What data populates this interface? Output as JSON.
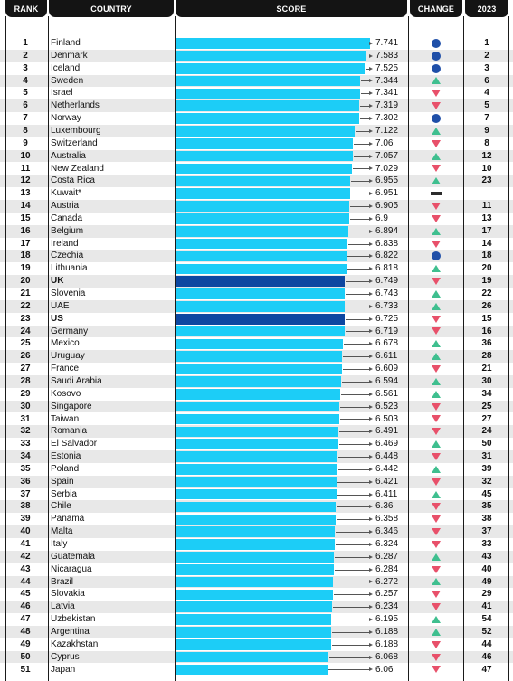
{
  "header": {
    "rank": "RANK",
    "country": "COUNTRY",
    "score": "SCORE",
    "change": "CHANGE",
    "prev_year": "2023"
  },
  "colors": {
    "bar": "#1ccdf7",
    "bar_highlight": "#0d47a1",
    "row_alt": "#e8e8e8",
    "up": "#3fbf8f",
    "down": "#e8506a",
    "same": "#1f4fa8",
    "new": "#2b2b2b"
  },
  "chart_data": {
    "type": "bar",
    "orientation": "horizontal",
    "value_range": [
      0,
      7.741
    ],
    "rows": [
      {
        "rank": "1",
        "country": "Finland",
        "score": 7.741,
        "score_label": "7.741",
        "change": "same",
        "prev": "1",
        "highlight": false
      },
      {
        "rank": "2",
        "country": "Denmark",
        "score": 7.583,
        "score_label": "7.583",
        "change": "same",
        "prev": "2",
        "highlight": false
      },
      {
        "rank": "3",
        "country": "Iceland",
        "score": 7.525,
        "score_label": "7.525",
        "change": "same",
        "prev": "3",
        "highlight": false
      },
      {
        "rank": "4",
        "country": "Sweden",
        "score": 7.344,
        "score_label": "7.344",
        "change": "up",
        "prev": "6",
        "highlight": false
      },
      {
        "rank": "5",
        "country": "Israel",
        "score": 7.341,
        "score_label": "7.341",
        "change": "down",
        "prev": "4",
        "highlight": false
      },
      {
        "rank": "6",
        "country": "Netherlands",
        "score": 7.319,
        "score_label": "7.319",
        "change": "down",
        "prev": "5",
        "highlight": false
      },
      {
        "rank": "7",
        "country": "Norway",
        "score": 7.302,
        "score_label": "7.302",
        "change": "same",
        "prev": "7",
        "highlight": false
      },
      {
        "rank": "8",
        "country": "Luxembourg",
        "score": 7.122,
        "score_label": "7.122",
        "change": "up",
        "prev": "9",
        "highlight": false
      },
      {
        "rank": "9",
        "country": "Switzerland",
        "score": 7.06,
        "score_label": "7.06",
        "change": "down",
        "prev": "8",
        "highlight": false
      },
      {
        "rank": "10",
        "country": "Australia",
        "score": 7.057,
        "score_label": "7.057",
        "change": "up",
        "prev": "12",
        "highlight": false
      },
      {
        "rank": "11",
        "country": "New Zealand",
        "score": 7.029,
        "score_label": "7.029",
        "change": "down",
        "prev": "10",
        "highlight": false
      },
      {
        "rank": "12",
        "country": "Costa Rica",
        "score": 6.955,
        "score_label": "6.955",
        "change": "up",
        "prev": "23",
        "highlight": false
      },
      {
        "rank": "13",
        "country": "Kuwait*",
        "score": 6.951,
        "score_label": "6.951",
        "change": "new",
        "prev": "",
        "highlight": false
      },
      {
        "rank": "14",
        "country": "Austria",
        "score": 6.905,
        "score_label": "6.905",
        "change": "down",
        "prev": "11",
        "highlight": false
      },
      {
        "rank": "15",
        "country": "Canada",
        "score": 6.9,
        "score_label": "6.9",
        "change": "down",
        "prev": "13",
        "highlight": false
      },
      {
        "rank": "16",
        "country": "Belgium",
        "score": 6.894,
        "score_label": "6.894",
        "change": "up",
        "prev": "17",
        "highlight": false
      },
      {
        "rank": "17",
        "country": "Ireland",
        "score": 6.838,
        "score_label": "6.838",
        "change": "down",
        "prev": "14",
        "highlight": false
      },
      {
        "rank": "18",
        "country": "Czechia",
        "score": 6.822,
        "score_label": "6.822",
        "change": "same",
        "prev": "18",
        "highlight": false
      },
      {
        "rank": "19",
        "country": "Lithuania",
        "score": 6.818,
        "score_label": "6.818",
        "change": "up",
        "prev": "20",
        "highlight": false
      },
      {
        "rank": "20",
        "country": "UK",
        "score": 6.749,
        "score_label": "6.749",
        "change": "down",
        "prev": "19",
        "highlight": true
      },
      {
        "rank": "21",
        "country": "Slovenia",
        "score": 6.743,
        "score_label": "6.743",
        "change": "up",
        "prev": "22",
        "highlight": false
      },
      {
        "rank": "22",
        "country": "UAE",
        "score": 6.733,
        "score_label": "6.733",
        "change": "up",
        "prev": "26",
        "highlight": false
      },
      {
        "rank": "23",
        "country": "US",
        "score": 6.725,
        "score_label": "6.725",
        "change": "down",
        "prev": "15",
        "highlight": true
      },
      {
        "rank": "24",
        "country": "Germany",
        "score": 6.719,
        "score_label": "6.719",
        "change": "down",
        "prev": "16",
        "highlight": false
      },
      {
        "rank": "25",
        "country": "Mexico",
        "score": 6.678,
        "score_label": "6.678",
        "change": "up",
        "prev": "36",
        "highlight": false
      },
      {
        "rank": "26",
        "country": "Uruguay",
        "score": 6.611,
        "score_label": "6.611",
        "change": "up",
        "prev": "28",
        "highlight": false
      },
      {
        "rank": "27",
        "country": "France",
        "score": 6.609,
        "score_label": "6.609",
        "change": "down",
        "prev": "21",
        "highlight": false
      },
      {
        "rank": "28",
        "country": "Saudi Arabia",
        "score": 6.594,
        "score_label": "6.594",
        "change": "up",
        "prev": "30",
        "highlight": false
      },
      {
        "rank": "29",
        "country": "Kosovo",
        "score": 6.561,
        "score_label": "6.561",
        "change": "up",
        "prev": "34",
        "highlight": false
      },
      {
        "rank": "30",
        "country": "Singapore",
        "score": 6.523,
        "score_label": "6.523",
        "change": "down",
        "prev": "25",
        "highlight": false
      },
      {
        "rank": "31",
        "country": "Taiwan",
        "score": 6.503,
        "score_label": "6.503",
        "change": "down",
        "prev": "27",
        "highlight": false
      },
      {
        "rank": "32",
        "country": "Romania",
        "score": 6.491,
        "score_label": "6.491",
        "change": "down",
        "prev": "24",
        "highlight": false
      },
      {
        "rank": "33",
        "country": "El Salvador",
        "score": 6.469,
        "score_label": "6.469",
        "change": "up",
        "prev": "50",
        "highlight": false
      },
      {
        "rank": "34",
        "country": "Estonia",
        "score": 6.448,
        "score_label": "6.448",
        "change": "down",
        "prev": "31",
        "highlight": false
      },
      {
        "rank": "35",
        "country": "Poland",
        "score": 6.442,
        "score_label": "6.442",
        "change": "up",
        "prev": "39",
        "highlight": false
      },
      {
        "rank": "36",
        "country": "Spain",
        "score": 6.421,
        "score_label": "6.421",
        "change": "down",
        "prev": "32",
        "highlight": false
      },
      {
        "rank": "37",
        "country": "Serbia",
        "score": 6.411,
        "score_label": "6.411",
        "change": "up",
        "prev": "45",
        "highlight": false
      },
      {
        "rank": "38",
        "country": "Chile",
        "score": 6.36,
        "score_label": "6.36",
        "change": "down",
        "prev": "35",
        "highlight": false
      },
      {
        "rank": "39",
        "country": "Panama",
        "score": 6.358,
        "score_label": "6.358",
        "change": "down",
        "prev": "38",
        "highlight": false
      },
      {
        "rank": "40",
        "country": "Malta",
        "score": 6.346,
        "score_label": "6.346",
        "change": "down",
        "prev": "37",
        "highlight": false
      },
      {
        "rank": "41",
        "country": "Italy",
        "score": 6.324,
        "score_label": "6.324",
        "change": "down",
        "prev": "33",
        "highlight": false
      },
      {
        "rank": "42",
        "country": "Guatemala",
        "score": 6.287,
        "score_label": "6.287",
        "change": "up",
        "prev": "43",
        "highlight": false
      },
      {
        "rank": "43",
        "country": "Nicaragua",
        "score": 6.284,
        "score_label": "6.284",
        "change": "down",
        "prev": "40",
        "highlight": false
      },
      {
        "rank": "44",
        "country": "Brazil",
        "score": 6.272,
        "score_label": "6.272",
        "change": "up",
        "prev": "49",
        "highlight": false
      },
      {
        "rank": "45",
        "country": "Slovakia",
        "score": 6.257,
        "score_label": "6.257",
        "change": "down",
        "prev": "29",
        "highlight": false
      },
      {
        "rank": "46",
        "country": "Latvia",
        "score": 6.234,
        "score_label": "6.234",
        "change": "down",
        "prev": "41",
        "highlight": false
      },
      {
        "rank": "47",
        "country": "Uzbekistan",
        "score": 6.195,
        "score_label": "6.195",
        "change": "up",
        "prev": "54",
        "highlight": false
      },
      {
        "rank": "48",
        "country": "Argentina",
        "score": 6.188,
        "score_label": "6.188",
        "change": "up",
        "prev": "52",
        "highlight": false
      },
      {
        "rank": "49",
        "country": "Kazakhstan",
        "score": 6.188,
        "score_label": "6.188",
        "change": "down",
        "prev": "44",
        "highlight": false
      },
      {
        "rank": "50",
        "country": "Cyprus",
        "score": 6.068,
        "score_label": "6.068",
        "change": "down",
        "prev": "46",
        "highlight": false
      },
      {
        "rank": "51",
        "country": "Japan",
        "score": 6.06,
        "score_label": "6.06",
        "change": "down",
        "prev": "47",
        "highlight": false
      }
    ]
  }
}
